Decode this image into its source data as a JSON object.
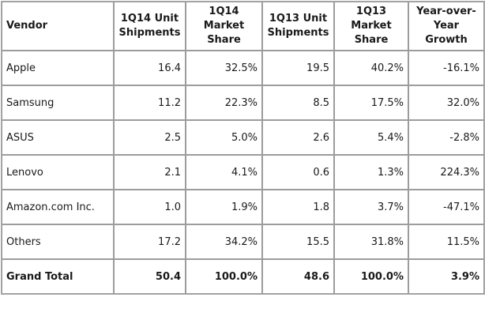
{
  "table": {
    "headers": [
      "Vendor",
      "1Q14 Unit Shipments",
      "1Q14 Market Share",
      "1Q13 Unit Shipments",
      "1Q13 Market Share",
      "Year-over-Year Growth"
    ],
    "rows": [
      [
        "Apple",
        "16.4",
        "32.5%",
        "19.5",
        "40.2%",
        "-16.1%"
      ],
      [
        "Samsung",
        "11.2",
        "22.3%",
        "8.5",
        "17.5%",
        "32.0%"
      ],
      [
        "ASUS",
        "2.5",
        "5.0%",
        "2.6",
        "5.4%",
        "-2.8%"
      ],
      [
        "Lenovo",
        "2.1",
        "4.1%",
        "0.6",
        "1.3%",
        "224.3%"
      ],
      [
        "Amazon.com Inc.",
        "1.0",
        "1.9%",
        "1.8",
        "3.7%",
        "-47.1%"
      ],
      [
        "Others",
        "17.2",
        "34.2%",
        "15.5",
        "31.8%",
        "11.5%"
      ]
    ],
    "total": [
      "Grand Total",
      "50.4",
      "100.0%",
      "48.6",
      "100.0%",
      "3.9%"
    ]
  }
}
